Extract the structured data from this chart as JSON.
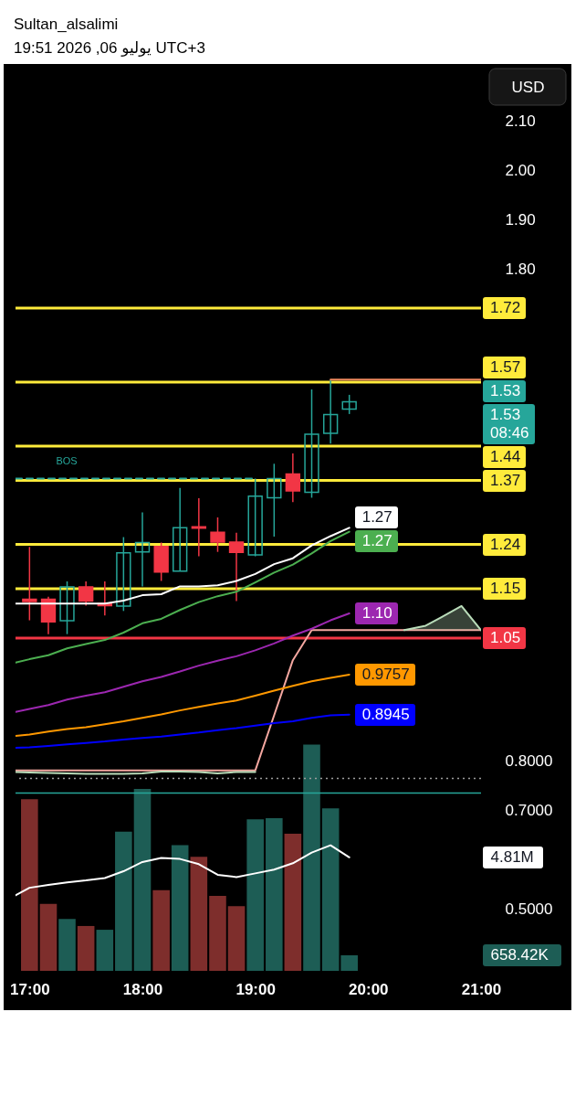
{
  "chart_data": {
    "type": "candlestick",
    "title": "Sultan_alsalimi",
    "subtitle": "UTC+3 يوليو 06, 2026 19:51",
    "ylabel": "USD",
    "x": [
      17,
      17.167,
      17.333,
      17.5,
      17.667,
      17.833,
      18,
      18.167,
      18.333,
      18.5,
      18.667,
      18.833,
      19,
      19.167,
      19.333,
      19.5,
      19.667,
      19.833
    ],
    "xlim": [
      16.876,
      21
    ],
    "xticks": [
      {
        "value": 17,
        "label": "17:00"
      },
      {
        "value": 18,
        "label": "18:00"
      },
      {
        "value": 19,
        "label": "19:00"
      },
      {
        "value": 20,
        "label": "20:00"
      },
      {
        "value": 21,
        "label": "21:00"
      }
    ],
    "ylim": [
      0.374,
      2.216
    ],
    "yticks": [
      {
        "value": 2.1,
        "label": "2.10"
      },
      {
        "value": 2,
        "label": "2.00"
      },
      {
        "value": 1.9,
        "label": "1.90"
      },
      {
        "value": 1.8,
        "label": "1.80"
      },
      {
        "value": 0.8,
        "label": "0.8000"
      },
      {
        "value": 0.7,
        "label": "0.7000"
      },
      {
        "value": 0.5,
        "label": "0.5000"
      }
    ],
    "y2lim": [
      0,
      38420000
    ],
    "y2ticks": [
      {
        "value": 4810000,
        "label": "4.81M"
      },
      {
        "value": 658420,
        "label": "658.42K"
      }
    ],
    "ohlc": [
      [
        1.129,
        1.235,
        1.086,
        1.124
      ],
      [
        1.129,
        1.134,
        1.058,
        1.083
      ],
      [
        1.085,
        1.165,
        1.058,
        1.154
      ],
      [
        1.154,
        1.165,
        1.116,
        1.125
      ],
      [
        1.12,
        1.165,
        1.096,
        1.116
      ],
      [
        1.115,
        1.255,
        1.105,
        1.223
      ],
      [
        1.225,
        1.305,
        1.155,
        1.244
      ],
      [
        1.236,
        1.244,
        1.166,
        1.184
      ],
      [
        1.186,
        1.355,
        1.186,
        1.274
      ],
      [
        1.276,
        1.334,
        1.216,
        1.273
      ],
      [
        1.265,
        1.295,
        1.225,
        1.245
      ],
      [
        1.245,
        1.264,
        1.125,
        1.224
      ],
      [
        1.219,
        1.374,
        1.216,
        1.338
      ],
      [
        1.335,
        1.404,
        1.256,
        1.374
      ],
      [
        1.383,
        1.425,
        1.326,
        1.349
      ],
      [
        1.346,
        1.555,
        1.335,
        1.464
      ],
      [
        1.466,
        1.575,
        1.445,
        1.504
      ],
      [
        1.515,
        1.544,
        1.505,
        1.53
      ]
    ],
    "colors": [
      "#f23645",
      "#f23645",
      "#26a69a",
      "#f23645",
      "#f23645",
      "#26a69a",
      "#26a69a",
      "#f23645",
      "#26a69a",
      "#f23645",
      "#f23645",
      "#f23645",
      "#26a69a",
      "#26a69a",
      "#f23645",
      "#26a69a",
      "#26a69a",
      "#26a69a"
    ],
    "value_labels": [
      null,
      null,
      null,
      null,
      null,
      null,
      null,
      null,
      null,
      null,
      null,
      null,
      null,
      null,
      null,
      null,
      null,
      "1.53"
    ],
    "series": [
      {
        "type": "bar",
        "axis": "y2",
        "values": [
          7270000,
          2840000,
          2200000,
          1900000,
          1740000,
          5900000,
          7710000,
          3420000,
          5330000,
          4830000,
          3180000,
          2740000,
          6420000,
          6470000,
          5810000,
          9590000,
          6880000,
          658420
        ],
        "colors": [
          "#7e2e2c",
          "#7e2e2c",
          "#1d5d55",
          "#7e2e2c",
          "#1d5d55",
          "#1d5d55",
          "#1d5d55",
          "#7e2e2c",
          "#1d5d55",
          "#7e2e2c",
          "#7e2e2c",
          "#7e2e2c",
          "#1d5d55",
          "#1d5d55",
          "#7e2e2c",
          "#1d5d55",
          "#1d5d55",
          "#1d5d55"
        ]
      },
      {
        "type": "line",
        "axis": "y2",
        "color": "#ffffff",
        "x": [
          16.876,
          17,
          17.167,
          17.333,
          17.5,
          17.667,
          17.833,
          18,
          18.167,
          18.333,
          18.5,
          18.667,
          18.833,
          19,
          19.167,
          19.333,
          19.5,
          19.667,
          19.833
        ],
        "values": [
          3200000,
          3520000,
          3640000,
          3750000,
          3830000,
          3930000,
          4220000,
          4610000,
          4780000,
          4740000,
          4520000,
          4070000,
          3970000,
          4130000,
          4290000,
          4560000,
          5010000,
          5320000,
          4810000
        ]
      },
      {
        "type": "line",
        "color": "#f4a7a0",
        "x": [
          16.876,
          17,
          17.167,
          17.333,
          17.5,
          17.667,
          17.833,
          18,
          18.167,
          18.333,
          18.5,
          18.667,
          18.833,
          19,
          19.167,
          19.333,
          19.5,
          21
        ],
        "values": [
          0.781,
          0.781,
          0.781,
          0.781,
          0.781,
          0.781,
          0.781,
          0.781,
          0.781,
          0.781,
          0.781,
          0.781,
          0.781,
          0.781,
          0.893,
          1.005,
          1.066,
          1.066
        ]
      },
      {
        "type": "line",
        "color": "#b9dcb9",
        "x": [
          16.876,
          17,
          17.167,
          17.333,
          17.5,
          17.667,
          17.833,
          18,
          18.167,
          18.333,
          18.5,
          18.667,
          18.833,
          19,
          19.5,
          20.32,
          20.51,
          20.646,
          20.827,
          21
        ],
        "values": [
          0.778,
          0.777,
          0.776,
          0.775,
          0.774,
          0.774,
          0.774,
          0.775,
          0.779,
          0.779,
          0.778,
          0.775,
          0.778,
          0.778,
          null,
          1.066,
          1.075,
          1.092,
          1.115,
          1.066
        ],
        "lower": [
          null,
          null,
          null,
          null,
          null,
          null,
          null,
          null,
          null,
          null,
          null,
          null,
          null,
          null,
          null,
          1.066,
          1.066,
          1.066,
          1.066,
          1.066
        ],
        "upper": [
          null,
          null,
          null,
          null,
          null,
          null,
          null,
          null,
          null,
          null,
          null,
          null,
          null,
          null,
          null,
          1.066,
          1.075,
          1.092,
          1.115,
          1.066
        ]
      },
      {
        "type": "line",
        "color": "#0000ff",
        "x": [
          16.876,
          17,
          17.167,
          17.333,
          17.5,
          17.667,
          17.833,
          18,
          18.167,
          18.333,
          18.5,
          18.667,
          18.833,
          19,
          19.167,
          19.333,
          19.5,
          19.667,
          19.833
        ],
        "values": [
          0.827,
          0.828,
          0.831,
          0.834,
          0.837,
          0.84,
          0.844,
          0.847,
          0.85,
          0.854,
          0.858,
          0.863,
          0.867,
          0.872,
          0.877,
          0.881,
          0.888,
          0.893,
          0.8945
        ],
        "value_labels": [
          null,
          null,
          null,
          null,
          null,
          null,
          null,
          null,
          null,
          null,
          null,
          null,
          null,
          null,
          null,
          null,
          null,
          null,
          "0.8945"
        ]
      },
      {
        "type": "line",
        "color": "#ff9800",
        "x": [
          16.876,
          17,
          17.167,
          17.333,
          17.5,
          17.667,
          17.833,
          18,
          18.167,
          18.333,
          18.5,
          18.667,
          18.833,
          19,
          19.167,
          19.333,
          19.5,
          19.667,
          19.833
        ],
        "values": [
          0.851,
          0.854,
          0.86,
          0.865,
          0.869,
          0.875,
          0.881,
          0.888,
          0.895,
          0.903,
          0.91,
          0.917,
          0.923,
          0.933,
          0.943,
          0.953,
          0.962,
          0.969,
          0.9757
        ],
        "value_labels": [
          null,
          null,
          null,
          null,
          null,
          null,
          null,
          null,
          null,
          null,
          null,
          null,
          null,
          null,
          null,
          null,
          null,
          null,
          "0.9757"
        ]
      },
      {
        "type": "line",
        "color": "#9c27b0",
        "x": [
          16.876,
          17,
          17.167,
          17.333,
          17.5,
          17.667,
          17.833,
          18,
          18.167,
          18.333,
          18.5,
          18.667,
          18.833,
          19,
          19.167,
          19.333,
          19.5,
          19.667,
          19.833
        ],
        "values": [
          0.9,
          0.906,
          0.914,
          0.925,
          0.933,
          0.94,
          0.951,
          0.962,
          0.971,
          0.982,
          0.994,
          1.004,
          1.013,
          1.025,
          1.039,
          1.055,
          1.069,
          1.086,
          1.1
        ],
        "value_labels": [
          null,
          null,
          null,
          null,
          null,
          null,
          null,
          null,
          null,
          null,
          null,
          null,
          null,
          null,
          null,
          null,
          null,
          null,
          "1.10"
        ]
      },
      {
        "type": "line",
        "color": "#4caf50",
        "x": [
          16.876,
          17,
          17.167,
          17.333,
          17.5,
          17.667,
          17.833,
          18,
          18.167,
          18.333,
          18.5,
          18.667,
          18.833,
          19,
          19.167,
          19.333,
          19.5,
          19.667,
          19.833
        ],
        "values": [
          1,
          1.007,
          1.015,
          1.029,
          1.038,
          1.046,
          1.061,
          1.08,
          1.089,
          1.107,
          1.123,
          1.135,
          1.144,
          1.163,
          1.183,
          1.199,
          1.222,
          1.247,
          1.266
        ],
        "value_labels": [
          null,
          null,
          null,
          null,
          null,
          null,
          null,
          null,
          null,
          null,
          null,
          null,
          null,
          null,
          null,
          null,
          null,
          null,
          "1.27"
        ]
      },
      {
        "type": "line",
        "color": "#ffffff",
        "x": [
          16.876,
          17,
          17.167,
          17.333,
          17.5,
          17.667,
          17.833,
          18,
          18.167,
          18.333,
          18.5,
          18.667,
          18.833,
          19,
          19.167,
          19.333,
          19.5,
          19.667,
          19.833
        ],
        "values": [
          1.12,
          1.12,
          1.12,
          1.12,
          1.12,
          1.12,
          1.126,
          1.137,
          1.139,
          1.155,
          1.155,
          1.157,
          1.166,
          1.18,
          1.2,
          1.212,
          1.238,
          1.257,
          1.274
        ],
        "value_labels": [
          null,
          null,
          null,
          null,
          null,
          null,
          null,
          null,
          null,
          null,
          null,
          null,
          null,
          null,
          null,
          null,
          null,
          null,
          "1.27"
        ]
      },
      {
        "type": "line",
        "name": "BOS",
        "color": "#26a69a",
        "line_style": "dashed",
        "x": [
          16.876,
          19
        ],
        "values": [
          1.374,
          1.374
        ]
      },
      {
        "type": "line",
        "color": "#f08a5d",
        "x": [
          19.667,
          21
        ],
        "values": [
          1.575,
          1.575
        ]
      }
    ],
    "ref_lines": [
      {
        "axis": "y",
        "value": 1.72,
        "label": "1.72",
        "color": "#ffeb3b"
      },
      {
        "axis": "y",
        "value": 1.57,
        "label": "1.57",
        "color": "#ffeb3b"
      },
      {
        "axis": "y",
        "value": 1.44,
        "label": "1.44",
        "color": "#ffeb3b"
      },
      {
        "axis": "y",
        "value": 1.37,
        "label": "1.37",
        "color": "#ffeb3b"
      },
      {
        "axis": "y",
        "value": 1.24,
        "label": "1.24",
        "color": "#ffeb3b"
      },
      {
        "axis": "y",
        "value": 1.15,
        "label": "1.15",
        "color": "#ffeb3b"
      },
      {
        "axis": "y",
        "value": 1.05,
        "label": "1.05",
        "color": "#f23645"
      },
      {
        "axis": "y",
        "value": 0.765,
        "color": "#9e9e9e",
        "line_style": "dotted"
      },
      {
        "axis": "y",
        "value": 0.735,
        "color": "#26a69a"
      }
    ],
    "annotations": [
      "1.53",
      "08:46"
    ]
  }
}
